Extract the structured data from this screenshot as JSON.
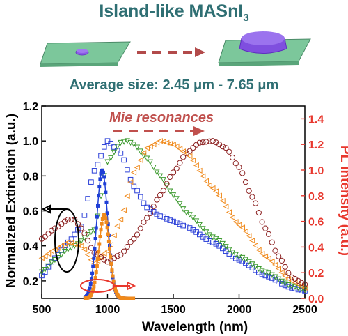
{
  "header": {
    "title_main": "Island-like MASnI",
    "title_sub": "3",
    "subtitle": "Average size: 2.45 μm - 7.65 μm"
  },
  "colors": {
    "title": "#2f6f73",
    "substrate": "#7cc79b",
    "island": "#8a5ce6",
    "arrow_dark": "#b24a4a",
    "mie": "#c0504d",
    "pl_axis": "#e8372d",
    "pl_blue": "#1f3fd6",
    "pl_orange": "#f08a1c"
  },
  "chart_data": {
    "type": "scatter",
    "title": "",
    "xlabel": "Wavelength (nm)",
    "ylabel_left": "Normalized Extinction (a.u.)",
    "ylabel_right": "PL intensity (a.u.)",
    "xlim": [
      500,
      2500
    ],
    "ylim_left": [
      0.1,
      1.2
    ],
    "ylim_right": [
      0,
      1.5
    ],
    "x_ticks": [
      "500",
      "1000",
      "1500",
      "2000",
      "2500"
    ],
    "y_left_ticks": [
      "0.2",
      "0.4",
      "0.6",
      "0.8",
      "1.0",
      "1.2"
    ],
    "y_right_ticks": [
      "0.0",
      "0.2",
      "0.4",
      "0.6",
      "0.8",
      "1.0",
      "1.2",
      "1.4"
    ],
    "annotation": "Mie resonances",
    "grid": false,
    "extinction_series": [
      {
        "color": "#2a3fd8",
        "marker": "square",
        "x": [
          500,
          600,
          700,
          800,
          900,
          1000,
          1100,
          1200,
          1300,
          1400,
          1500,
          1600,
          1800,
          2000,
          2200,
          2400,
          2500
        ],
        "y": [
          0.23,
          0.33,
          0.42,
          0.51,
          0.83,
          1.0,
          0.93,
          0.74,
          0.62,
          0.57,
          0.54,
          0.51,
          0.42,
          0.32,
          0.23,
          0.16,
          0.14
        ]
      },
      {
        "color": "#3c9a2e",
        "marker": "triangle-down",
        "x": [
          500,
          600,
          700,
          750,
          900,
          1000,
          1100,
          1150,
          1200,
          1300,
          1400,
          1500,
          1600,
          1800,
          2000,
          2200,
          2400,
          2500
        ],
        "y": [
          0.25,
          0.32,
          0.38,
          0.4,
          0.49,
          0.88,
          0.99,
          1.0,
          0.98,
          0.9,
          0.8,
          0.69,
          0.59,
          0.45,
          0.34,
          0.25,
          0.17,
          0.15
        ]
      },
      {
        "color": "#f08a1c",
        "marker": "triangle-left",
        "x": [
          500,
          600,
          700,
          800,
          900,
          1000,
          1100,
          1200,
          1300,
          1400,
          1500,
          1600,
          1800,
          2000,
          2200,
          2400,
          2500
        ],
        "y": [
          0.33,
          0.38,
          0.42,
          0.4,
          0.3,
          0.37,
          0.55,
          0.82,
          0.96,
          1.0,
          0.98,
          0.93,
          0.73,
          0.52,
          0.34,
          0.2,
          0.16
        ]
      },
      {
        "color": "#8b1f1f",
        "marker": "circle",
        "x": [
          500,
          600,
          700,
          750,
          800,
          900,
          1000,
          1100,
          1200,
          1300,
          1400,
          1500,
          1600,
          1700,
          1800,
          1900,
          2000,
          2100,
          2200,
          2300,
          2400,
          2500
        ],
        "y": [
          0.44,
          0.5,
          0.55,
          0.55,
          0.5,
          0.36,
          0.31,
          0.35,
          0.44,
          0.56,
          0.69,
          0.82,
          0.93,
          0.99,
          1.0,
          0.96,
          0.85,
          0.68,
          0.5,
          0.34,
          0.22,
          0.18
        ]
      }
    ],
    "pl_series": [
      {
        "color": "#1f3fd6",
        "marker": "square",
        "center": 960,
        "width": 42,
        "peak": 1.0
      },
      {
        "color": "#f08a1c",
        "marker": "square",
        "center": 975,
        "width": 40,
        "peak": 0.65
      }
    ]
  }
}
